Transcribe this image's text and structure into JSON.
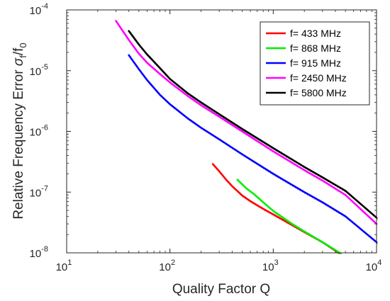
{
  "chart_data": {
    "type": "line",
    "title": "",
    "xlabel": "Quality Factor Q",
    "ylabel": {
      "prefix": "Relative Frequency Error ",
      "sigma": "σ",
      "sub_f": "f",
      "slash": "/f",
      "sub_0": "0"
    },
    "xscale": "log",
    "yscale": "log",
    "xlim": [
      10,
      10000
    ],
    "ylim": [
      1e-08,
      0.0001
    ],
    "grid": false,
    "legend_position": "top-right",
    "x_ticks": [
      {
        "value": 10,
        "base": "10",
        "exp": "1"
      },
      {
        "value": 100,
        "base": "10",
        "exp": "2"
      },
      {
        "value": 1000,
        "base": "10",
        "exp": "3"
      },
      {
        "value": 10000,
        "base": "10",
        "exp": "4"
      }
    ],
    "y_ticks": [
      {
        "value": 1e-08,
        "base": "10",
        "exp": "-8"
      },
      {
        "value": 1e-07,
        "base": "10",
        "exp": "-7"
      },
      {
        "value": 1e-06,
        "base": "10",
        "exp": "-6"
      },
      {
        "value": 1e-05,
        "base": "10",
        "exp": "-5"
      },
      {
        "value": 0.0001,
        "base": "10",
        "exp": "-4"
      }
    ],
    "series": [
      {
        "name": "f= 433 MHz",
        "color": "#ff0000",
        "points": [
          [
            260,
            2.9e-07
          ],
          [
            300,
            2.2e-07
          ],
          [
            350,
            1.6e-07
          ],
          [
            400,
            1.25e-07
          ],
          [
            500,
            8.8e-08
          ],
          [
            600,
            7.1e-08
          ],
          [
            800,
            5.3e-08
          ],
          [
            1000,
            4.3e-08
          ],
          [
            1500,
            2.9e-08
          ],
          [
            2000,
            2.2e-08
          ],
          [
            3000,
            1.5e-08
          ],
          [
            4300,
            1e-08
          ]
        ]
      },
      {
        "name": "f= 868 MHz",
        "color": "#00ee00",
        "points": [
          [
            450,
            1.6e-07
          ],
          [
            550,
            1.15e-07
          ],
          [
            650,
            9.3e-08
          ],
          [
            800,
            6.8e-08
          ],
          [
            1000,
            4.9e-08
          ],
          [
            1500,
            3.05e-08
          ],
          [
            2000,
            2.25e-08
          ],
          [
            3000,
            1.5e-08
          ],
          [
            4500,
            9.8e-09
          ]
        ]
      },
      {
        "name": "f= 915 MHz",
        "color": "#0000ff",
        "points": [
          [
            40,
            1.8e-05
          ],
          [
            50,
            1.06e-05
          ],
          [
            60,
            7e-06
          ],
          [
            80,
            4e-06
          ],
          [
            100,
            2.8e-06
          ],
          [
            150,
            1.62e-06
          ],
          [
            200,
            1.15e-06
          ],
          [
            300,
            7.4e-07
          ],
          [
            500,
            4.2e-07
          ],
          [
            1000,
            2e-07
          ],
          [
            2000,
            1e-07
          ],
          [
            3000,
            6.8e-08
          ],
          [
            5000,
            4e-08
          ],
          [
            10000,
            1.5e-08
          ]
        ]
      },
      {
        "name": "f= 2450 MHz",
        "color": "#ff00ff",
        "points": [
          [
            30,
            6.6e-05
          ],
          [
            40,
            3.2e-05
          ],
          [
            50,
            1.9e-05
          ],
          [
            60,
            1.35e-05
          ],
          [
            80,
            8.8e-06
          ],
          [
            100,
            6.4e-06
          ],
          [
            150,
            3.8e-06
          ],
          [
            200,
            2.7e-06
          ],
          [
            300,
            1.75e-06
          ],
          [
            500,
            1e-06
          ],
          [
            1000,
            4.7e-07
          ],
          [
            2000,
            2.3e-07
          ],
          [
            3000,
            1.55e-07
          ],
          [
            5000,
            9e-08
          ],
          [
            10000,
            3e-08
          ]
        ]
      },
      {
        "name": "f= 5800 MHz",
        "color": "#000000",
        "points": [
          [
            40,
            4.5e-05
          ],
          [
            50,
            2.7e-05
          ],
          [
            60,
            1.85e-05
          ],
          [
            80,
            1.1e-05
          ],
          [
            100,
            7.3e-06
          ],
          [
            150,
            4.2e-06
          ],
          [
            200,
            3e-06
          ],
          [
            300,
            1.92e-06
          ],
          [
            500,
            1.1e-06
          ],
          [
            1000,
            5.3e-07
          ],
          [
            2000,
            2.6e-07
          ],
          [
            3000,
            1.75e-07
          ],
          [
            5000,
            1.05e-07
          ],
          [
            10000,
            3.8e-08
          ]
        ]
      }
    ]
  }
}
